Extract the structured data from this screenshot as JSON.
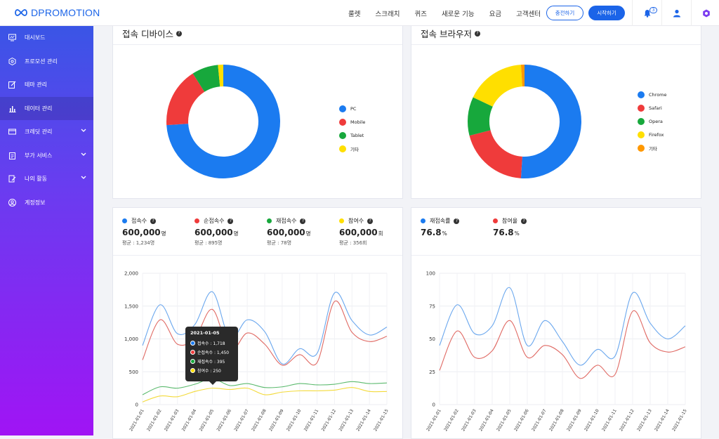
{
  "header": {
    "brand": "DPROMOTION",
    "nav": [
      "룰렛",
      "스크래치",
      "퀴즈",
      "새로운 기능",
      "요금",
      "고객센터"
    ],
    "charge_label": "충전하기",
    "start_label": "시작하기",
    "notification_count": "3"
  },
  "sidebar": {
    "items": [
      {
        "label": "대시보드",
        "icon": "monitor-icon",
        "active": false,
        "expandable": false
      },
      {
        "label": "프로모션 관리",
        "icon": "gear-icon",
        "active": false,
        "expandable": false
      },
      {
        "label": "테마 관리",
        "icon": "edit-icon",
        "active": false,
        "expandable": false
      },
      {
        "label": "데이터 관리",
        "icon": "bar-chart-icon",
        "active": true,
        "expandable": false
      },
      {
        "label": "크레딧 관리",
        "icon": "credit-card-icon",
        "active": false,
        "expandable": true
      },
      {
        "label": "부가 서비스",
        "icon": "clipboard-icon",
        "active": false,
        "expandable": true
      },
      {
        "label": "나의 활동",
        "icon": "activity-icon",
        "active": false,
        "expandable": true
      },
      {
        "label": "계정정보",
        "icon": "user-circle-icon",
        "active": false,
        "expandable": false
      }
    ]
  },
  "devices": {
    "title": "접속 디바이스",
    "legend": [
      {
        "label": "PC",
        "color": "#1b7bf0"
      },
      {
        "label": "Mobile",
        "color": "#ef3b3b"
      },
      {
        "label": "Tablet",
        "color": "#17a83c"
      },
      {
        "label": "기타",
        "color": "#ffdf00"
      }
    ]
  },
  "browsers": {
    "title": "접속 브라우저",
    "legend": [
      {
        "label": "Chrome",
        "color": "#1b7bf0"
      },
      {
        "label": "Safari",
        "color": "#ef3b3b"
      },
      {
        "label": "Opera",
        "color": "#17a83c"
      },
      {
        "label": "Firefox",
        "color": "#ffdf00"
      },
      {
        "label": "기타",
        "color": "#ff9800"
      }
    ]
  },
  "stats": [
    {
      "label": "접속수",
      "color": "#1b7bf0",
      "value": "600,000",
      "unit": "명",
      "avg": "평균 : 1,234명"
    },
    {
      "label": "순접속수",
      "color": "#ef3b3b",
      "value": "600,000",
      "unit": "명",
      "avg": "평균 : 895명"
    },
    {
      "label": "재접속수",
      "color": "#17a83c",
      "value": "600,000",
      "unit": "명",
      "avg": "평균 : 78명"
    },
    {
      "label": "참여수",
      "color": "#ffdf00",
      "value": "600,000",
      "unit": "회",
      "avg": "평균 : 356회"
    }
  ],
  "rates": [
    {
      "label": "재접속률",
      "color": "#1b7bf0",
      "value": "76.8",
      "unit": "%"
    },
    {
      "label": "참여율",
      "color": "#ef3b3b",
      "value": "76.8",
      "unit": "%"
    }
  ],
  "tooltip": {
    "title": "2021-01-05",
    "rows": [
      {
        "text": "접속수 : 1,718",
        "color": "#1b7bf0"
      },
      {
        "text": "순접속수 : 1,450",
        "color": "#ef3b3b"
      },
      {
        "text": "재접속수 : 395",
        "color": "#17a83c"
      },
      {
        "text": "참여수 : 250",
        "color": "#ffdf00"
      }
    ]
  },
  "chart_data": [
    {
      "type": "pie",
      "title": "접속 디바이스",
      "categories": [
        "PC",
        "Mobile",
        "Tablet",
        "기타"
      ],
      "values": [
        74,
        17,
        7.5,
        1.5
      ],
      "colors": [
        "#1b7bf0",
        "#ef3b3b",
        "#17a83c",
        "#ffdf00"
      ],
      "legend": "right"
    },
    {
      "type": "pie",
      "title": "접속 브라우저",
      "categories": [
        "Chrome",
        "Safari",
        "Opera",
        "Firefox",
        "기타"
      ],
      "values": [
        51,
        20,
        11,
        17,
        1
      ],
      "colors": [
        "#1b7bf0",
        "#ef3b3b",
        "#17a83c",
        "#ffdf00",
        "#ff9800"
      ],
      "legend": "right"
    },
    {
      "type": "line",
      "x": [
        "2021-01-01",
        "2021-01-02",
        "2021-01-03",
        "2021-01-04",
        "2021-01-05",
        "2021-01-06",
        "2021-01-07",
        "2021-01-08",
        "2021-01-09",
        "2021-01-10",
        "2021-01-11",
        "2021-01-12",
        "2021-01-13",
        "2021-01-14",
        "2021-01-15"
      ],
      "ylim": [
        0,
        2000
      ],
      "yticks": [
        0,
        500,
        1000,
        1500,
        2000
      ],
      "ytick_labels": [
        "0",
        "500",
        "1,000",
        "1,500",
        "2,000"
      ],
      "grid": true,
      "series": [
        {
          "name": "접속수",
          "color": "#6aa7ee",
          "values": [
            900,
            1520,
            1080,
            1220,
            1718,
            1010,
            1290,
            1110,
            620,
            850,
            780,
            1700,
            1280,
            1060,
            1180
          ]
        },
        {
          "name": "순접속수",
          "color": "#e06a64",
          "values": [
            680,
            1290,
            920,
            1010,
            1450,
            820,
            1090,
            920,
            600,
            760,
            640,
            1570,
            1100,
            960,
            1040
          ]
        },
        {
          "name": "재접속수",
          "color": "#5cba6e",
          "values": [
            150,
            270,
            250,
            310,
            395,
            290,
            320,
            260,
            270,
            320,
            300,
            310,
            350,
            320,
            330
          ]
        },
        {
          "name": "참여수",
          "color": "#f3da3a",
          "values": [
            40,
            130,
            120,
            200,
            250,
            230,
            250,
            150,
            190,
            210,
            210,
            220,
            260,
            200,
            200
          ]
        }
      ]
    },
    {
      "type": "line",
      "x": [
        "2021-01-01",
        "2021-01-02",
        "2021-01-03",
        "2021-01-04",
        "2021-01-05",
        "2021-01-06",
        "2021-01-07",
        "2021-01-08",
        "2021-01-09",
        "2021-01-10",
        "2021-01-11",
        "2021-01-12",
        "2021-01-13",
        "2021-01-14",
        "2021-01-15"
      ],
      "ylim": [
        0,
        100
      ],
      "yticks": [
        0,
        25,
        50,
        75,
        100
      ],
      "ytick_labels": [
        "0",
        "25",
        "50",
        "75",
        "100"
      ],
      "grid": true,
      "series": [
        {
          "name": "재접속률",
          "color": "#6aa7ee",
          "values": [
            45,
            76,
            54,
            60,
            89,
            45,
            64,
            48,
            30,
            42,
            37,
            85,
            62,
            50,
            60
          ]
        },
        {
          "name": "참여율",
          "color": "#e06a64",
          "values": [
            26,
            56,
            36,
            41,
            64,
            36,
            45,
            38,
            20,
            30,
            23,
            71,
            47,
            40,
            44
          ]
        }
      ]
    }
  ]
}
